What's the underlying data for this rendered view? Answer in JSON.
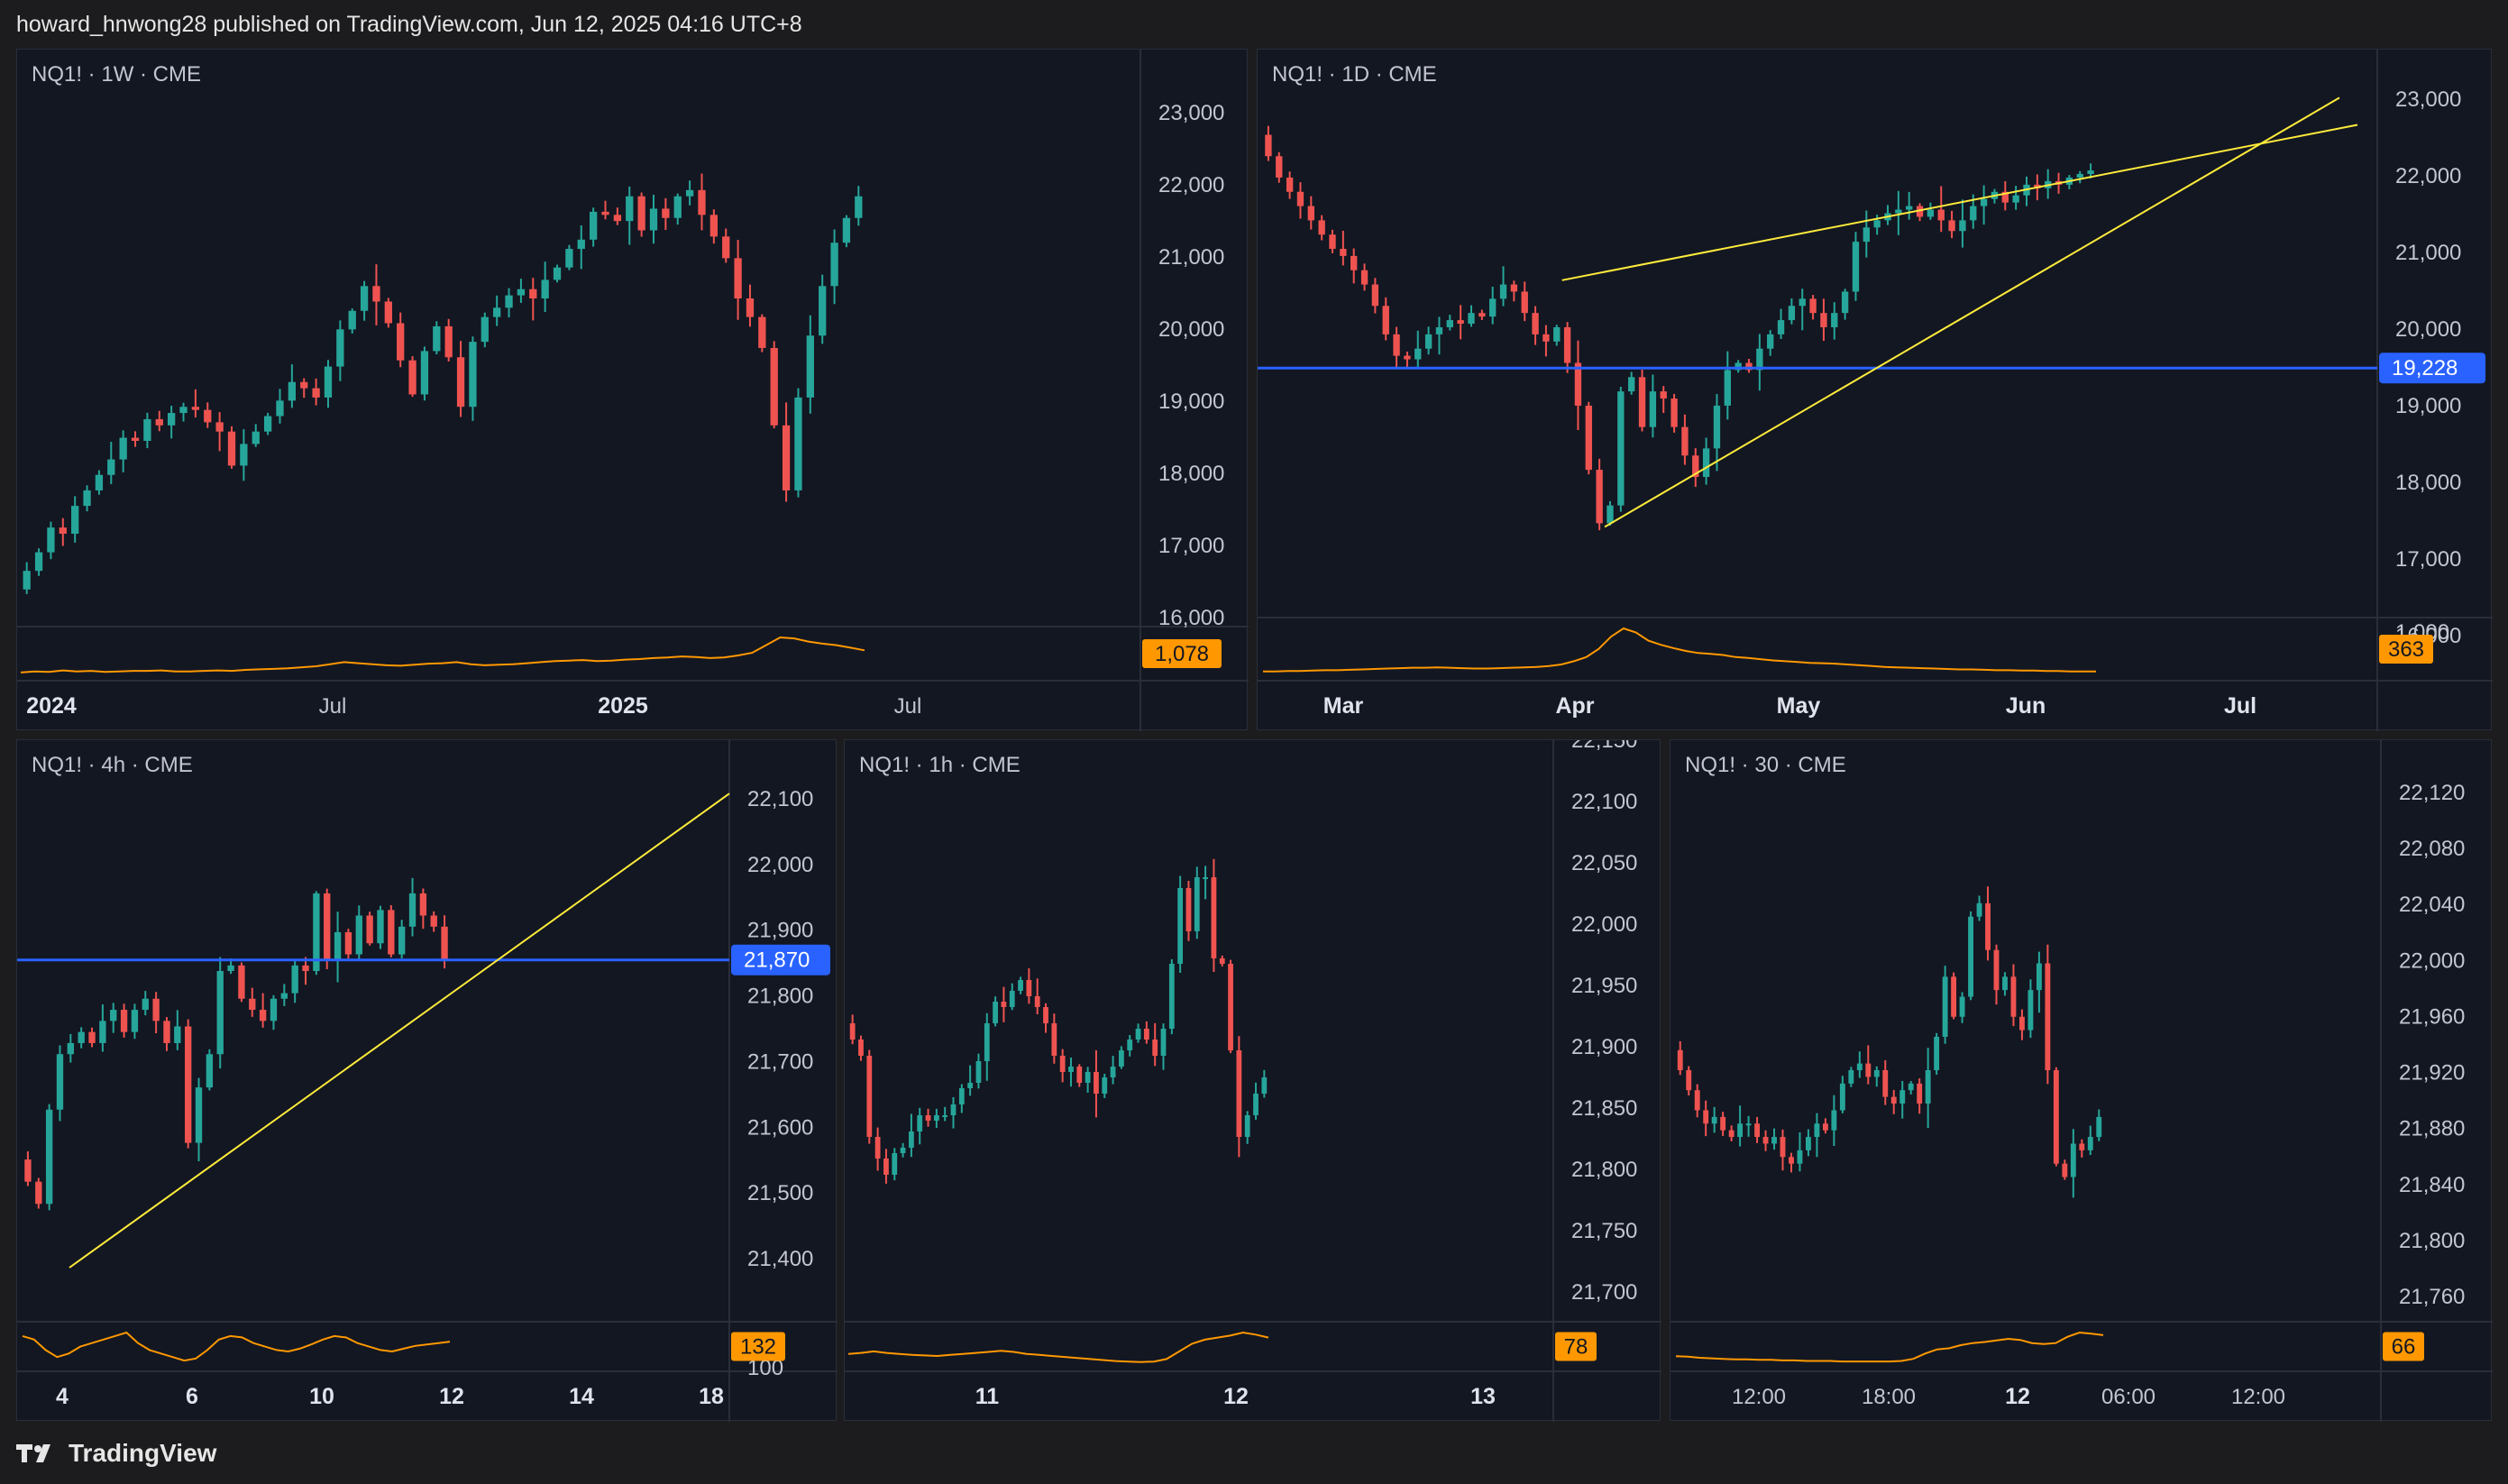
{
  "header": {
    "text": "howard_hnwong28 published on TradingView.com, Jun 12, 2025 04:16 UTC+8"
  },
  "footer": {
    "brand": "TradingView"
  },
  "colors": {
    "up": "#26a69a",
    "down": "#ef5350",
    "trend": "#ffeb3b",
    "level": "#2962ff",
    "osc": "#ff9800",
    "bg": "#131722"
  },
  "chart_data": [
    {
      "id": "weekly",
      "type": "candlestick",
      "title": "NQ1! · 1W · CME",
      "ylim": [
        15000,
        23300
      ],
      "y_ticks": [
        "23,000",
        "22,000",
        "21,000",
        "20,000",
        "19,000",
        "18,000",
        "17,000",
        "16,000"
      ],
      "x_ticks": [
        {
          "label": "2024",
          "bold": true
        },
        {
          "label": "Jul",
          "bold": false
        },
        {
          "label": "2025",
          "bold": true
        },
        {
          "label": "Jul",
          "bold": false
        }
      ],
      "oscillator_value": "1,078",
      "closes": [
        15900,
        16200,
        16600,
        16500,
        16950,
        17200,
        17450,
        17700,
        18050,
        18000,
        18350,
        18250,
        18450,
        18550,
        18500,
        18300,
        18150,
        17600,
        17950,
        18150,
        18400,
        18650,
        18950,
        18850,
        18700,
        19200,
        19800,
        20100,
        20500,
        20250,
        19900,
        19300,
        18750,
        19450,
        19850,
        19350,
        18550,
        19600,
        20000,
        20150,
        20350,
        20450,
        20300,
        20600,
        20800,
        21100,
        21250,
        21700,
        21650,
        21550,
        21950,
        21400,
        21750,
        21600,
        21950,
        22050,
        21650,
        21300,
        20950,
        20300,
        20000,
        19500,
        18250,
        17200,
        18700,
        19700,
        20500,
        21200,
        21600,
        21950
      ],
      "osc": [
        2,
        4,
        3,
        6,
        4,
        5,
        3,
        4,
        5,
        5,
        6,
        4,
        4,
        5,
        6,
        5,
        7,
        8,
        9,
        10,
        12,
        14,
        18,
        22,
        20,
        18,
        16,
        15,
        17,
        19,
        20,
        22,
        18,
        16,
        17,
        18,
        20,
        22,
        24,
        25,
        26,
        24,
        25,
        27,
        28,
        30,
        31,
        33,
        32,
        30,
        31,
        35,
        40,
        55,
        70,
        68,
        62,
        58,
        55,
        50,
        45
      ]
    },
    {
      "id": "daily",
      "type": "candlestick",
      "title": "NQ1! · 1D · CME",
      "ylim": [
        15600,
        23000
      ],
      "y_ticks": [
        "23,000",
        "22,000",
        "21,000",
        "20,000",
        "19,000",
        "18,000",
        "17,000",
        "16,000"
      ],
      "x_ticks": [
        {
          "label": "Mar",
          "bold": true
        },
        {
          "label": "Apr",
          "bold": true
        },
        {
          "label": "May",
          "bold": true
        },
        {
          "label": "Jun",
          "bold": true
        },
        {
          "label": "Jul",
          "bold": true
        }
      ],
      "level": "19,228",
      "level_value": 19228,
      "osc_top": "1,000",
      "oscillator_value": "363",
      "closes": [
        22200,
        21900,
        21700,
        21500,
        21300,
        21100,
        20900,
        20800,
        20600,
        20400,
        20100,
        19700,
        19400,
        19350,
        19500,
        19700,
        19800,
        19900,
        19850,
        20000,
        19950,
        20200,
        20400,
        20300,
        20000,
        19700,
        19600,
        19800,
        19300,
        18700,
        17800,
        17050,
        17300,
        18900,
        19100,
        18400,
        18900,
        18800,
        18400,
        18000,
        17700,
        18100,
        18700,
        19200,
        19300,
        19200,
        19500,
        19700,
        19900,
        20100,
        20200,
        20000,
        19800,
        20000,
        20300,
        21000,
        21200,
        21300,
        21400,
        21450,
        21500,
        21350,
        21450,
        21300,
        21150,
        21300,
        21500,
        21600,
        21700,
        21550,
        21650,
        21800,
        21750,
        21850,
        21800,
        21900,
        21950,
        22000
      ],
      "osc": [
        5,
        5,
        6,
        6,
        7,
        8,
        8,
        9,
        10,
        11,
        12,
        13,
        14,
        14,
        15,
        14,
        13,
        12,
        12,
        13,
        14,
        15,
        16,
        18,
        22,
        30,
        40,
        60,
        90,
        110,
        100,
        80,
        70,
        62,
        55,
        50,
        48,
        45,
        40,
        38,
        35,
        32,
        30,
        28,
        26,
        25,
        24,
        22,
        20,
        18,
        16,
        15,
        14,
        13,
        12,
        11,
        10,
        10,
        9,
        8,
        8,
        7,
        7,
        6,
        6,
        5,
        5,
        5
      ]
    },
    {
      "id": "h4",
      "type": "candlestick",
      "title": "NQ1! · 4h · CME",
      "ylim": [
        21315,
        22185
      ],
      "y_ticks": [
        "22,100",
        "22,000",
        "21,900",
        "21,800",
        "21,700",
        "21,600",
        "21,500",
        "21,400"
      ],
      "x_ticks": [
        {
          "label": "4",
          "bold": true
        },
        {
          "label": "6",
          "bold": true
        },
        {
          "label": "10",
          "bold": true
        },
        {
          "label": "12",
          "bold": true
        },
        {
          "label": "14",
          "bold": true
        },
        {
          "label": "18",
          "bold": true
        }
      ],
      "level": "21,870",
      "level_value": 21870,
      "osc_bottom": "100",
      "oscillator_value": "132",
      "closes": [
        21470,
        21430,
        21600,
        21700,
        21720,
        21740,
        21720,
        21760,
        21780,
        21740,
        21780,
        21800,
        21760,
        21720,
        21750,
        21540,
        21640,
        21700,
        21850,
        21860,
        21800,
        21780,
        21760,
        21800,
        21810,
        21860,
        21850,
        21990,
        21870,
        21920,
        21880,
        21950,
        21900,
        21960,
        21880,
        21930,
        21990,
        21950,
        21930,
        21870
      ],
      "osc": [
        40,
        35,
        20,
        10,
        15,
        25,
        30,
        35,
        40,
        45,
        30,
        20,
        15,
        10,
        5,
        8,
        20,
        35,
        40,
        38,
        30,
        25,
        20,
        18,
        22,
        28,
        35,
        40,
        38,
        30,
        25,
        20,
        18,
        22,
        26,
        28,
        30,
        32
      ]
    },
    {
      "id": "h1",
      "type": "candlestick",
      "title": "NQ1! · 1h · CME",
      "ylim": [
        21680,
        22155
      ],
      "y_ticks": [
        "22,150",
        "22,100",
        "22,050",
        "22,000",
        "21,950",
        "21,900",
        "21,850",
        "21,800",
        "21,750",
        "21,700"
      ],
      "x_ticks": [
        {
          "label": "11",
          "bold": true
        },
        {
          "label": "12",
          "bold": true
        },
        {
          "label": "13",
          "bold": true
        }
      ],
      "oscillator_value": "78",
      "closes": [
        21920,
        21905,
        21830,
        21810,
        21795,
        21815,
        21820,
        21835,
        21850,
        21845,
        21850,
        21850,
        21860,
        21875,
        21880,
        21900,
        21935,
        21955,
        21950,
        21965,
        21975,
        21960,
        21950,
        21935,
        21905,
        21890,
        21895,
        21880,
        21890,
        21870,
        21885,
        21895,
        21910,
        21920,
        21930,
        21920,
        21905,
        21930,
        21990,
        22060,
        22020,
        22070,
        22070,
        21995,
        21990,
        21910,
        21830,
        21850,
        21870,
        21885
      ],
      "osc": [
        20,
        22,
        25,
        22,
        20,
        18,
        17,
        16,
        18,
        20,
        22,
        24,
        26,
        24,
        20,
        18,
        16,
        14,
        12,
        10,
        8,
        6,
        5,
        4,
        5,
        10,
        25,
        40,
        48,
        52,
        56,
        62,
        58,
        52
      ]
    },
    {
      "id": "m30",
      "type": "candlestick",
      "title": "NQ1! · 30 · CME",
      "ylim": [
        21745,
        22140
      ],
      "y_ticks": [
        "22,120",
        "22,080",
        "22,040",
        "22,000",
        "21,960",
        "21,920",
        "21,880",
        "21,840",
        "21,800",
        "21,760"
      ],
      "x_ticks": [
        {
          "label": "12:00",
          "bold": false
        },
        {
          "label": "18:00",
          "bold": false
        },
        {
          "label": "12",
          "bold": true
        },
        {
          "label": "06:00",
          "bold": false
        },
        {
          "label": "12:00",
          "bold": false
        }
      ],
      "oscillator_value": "66",
      "closes": [
        21930,
        21915,
        21900,
        21890,
        21895,
        21885,
        21880,
        21890,
        21890,
        21880,
        21875,
        21880,
        21865,
        21860,
        21870,
        21880,
        21890,
        21885,
        21900,
        21920,
        21930,
        21935,
        21925,
        21930,
        21910,
        21905,
        21915,
        21920,
        21905,
        21930,
        21955,
        22000,
        21970,
        21985,
        22045,
        22055,
        22020,
        21990,
        22000,
        21970,
        21960,
        21990,
        22010,
        21930,
        21860,
        21850,
        21875,
        21870,
        21880,
        21895
      ],
      "osc": [
        15,
        14,
        12,
        11,
        10,
        9,
        9,
        8,
        8,
        7,
        7,
        6,
        6,
        6,
        5,
        5,
        5,
        5,
        5,
        6,
        10,
        20,
        28,
        30,
        36,
        40,
        42,
        45,
        48,
        46,
        40,
        38,
        40,
        52,
        60,
        58,
        55
      ]
    }
  ]
}
